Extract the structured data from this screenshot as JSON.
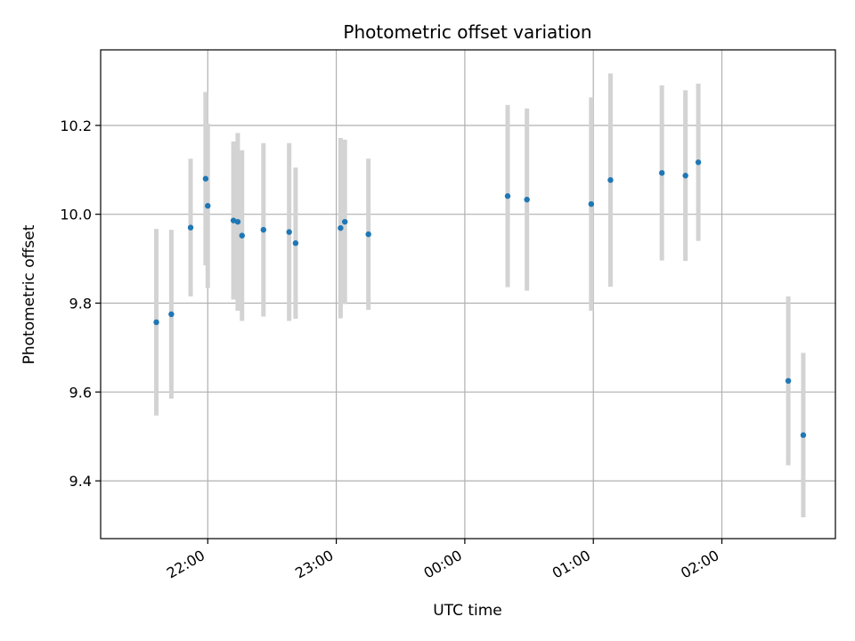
{
  "chart_data": {
    "type": "scatter",
    "title": "Photometric offset variation",
    "xlabel": "UTC time",
    "ylabel": "Photometric offset",
    "grid": true,
    "x_unit": "UTC time (HH:MM, crossing midnight)",
    "xlim": [
      "21:10",
      "02:53"
    ],
    "ylim": [
      9.27,
      10.37
    ],
    "x_ticks": [
      "22:00",
      "23:00",
      "00:00",
      "01:00",
      "02:00"
    ],
    "y_ticks": [
      "9.4",
      "9.6",
      "9.8",
      "10.0",
      "10.2"
    ],
    "colors": {
      "point": "#1f77b4",
      "errorbar": "#d3d3d3",
      "grid": "#b0b0b0"
    },
    "series": [
      {
        "points": [
          {
            "x": "21:36",
            "y": 9.757,
            "err": 0.21
          },
          {
            "x": "21:43",
            "y": 9.775,
            "err": 0.19
          },
          {
            "x": "21:52",
            "y": 9.97,
            "err": 0.155
          },
          {
            "x": "21:59",
            "y": 10.08,
            "err": 0.195
          },
          {
            "x": "22:00",
            "y": 10.019,
            "err": 0.185
          },
          {
            "x": "22:12",
            "y": 9.986,
            "err": 0.178
          },
          {
            "x": "22:14",
            "y": 9.983,
            "err": 0.2
          },
          {
            "x": "22:16",
            "y": 9.952,
            "err": 0.192
          },
          {
            "x": "22:26",
            "y": 9.965,
            "err": 0.195
          },
          {
            "x": "22:38",
            "y": 9.96,
            "err": 0.2
          },
          {
            "x": "22:41",
            "y": 9.935,
            "err": 0.17
          },
          {
            "x": "23:02",
            "y": 9.969,
            "err": 0.203
          },
          {
            "x": "23:04",
            "y": 9.983,
            "err": 0.185
          },
          {
            "x": "23:15",
            "y": 9.955,
            "err": 0.17
          },
          {
            "x": "00:20",
            "y": 10.041,
            "err": 0.205
          },
          {
            "x": "00:29",
            "y": 10.033,
            "err": 0.205
          },
          {
            "x": "00:59",
            "y": 10.023,
            "err": 0.24
          },
          {
            "x": "01:08",
            "y": 10.077,
            "err": 0.24
          },
          {
            "x": "01:32",
            "y": 10.093,
            "err": 0.197
          },
          {
            "x": "01:43",
            "y": 10.087,
            "err": 0.192
          },
          {
            "x": "01:49",
            "y": 10.117,
            "err": 0.177
          },
          {
            "x": "02:31",
            "y": 9.625,
            "err": 0.19
          },
          {
            "x": "02:38",
            "y": 9.503,
            "err": 0.185
          }
        ]
      }
    ]
  }
}
